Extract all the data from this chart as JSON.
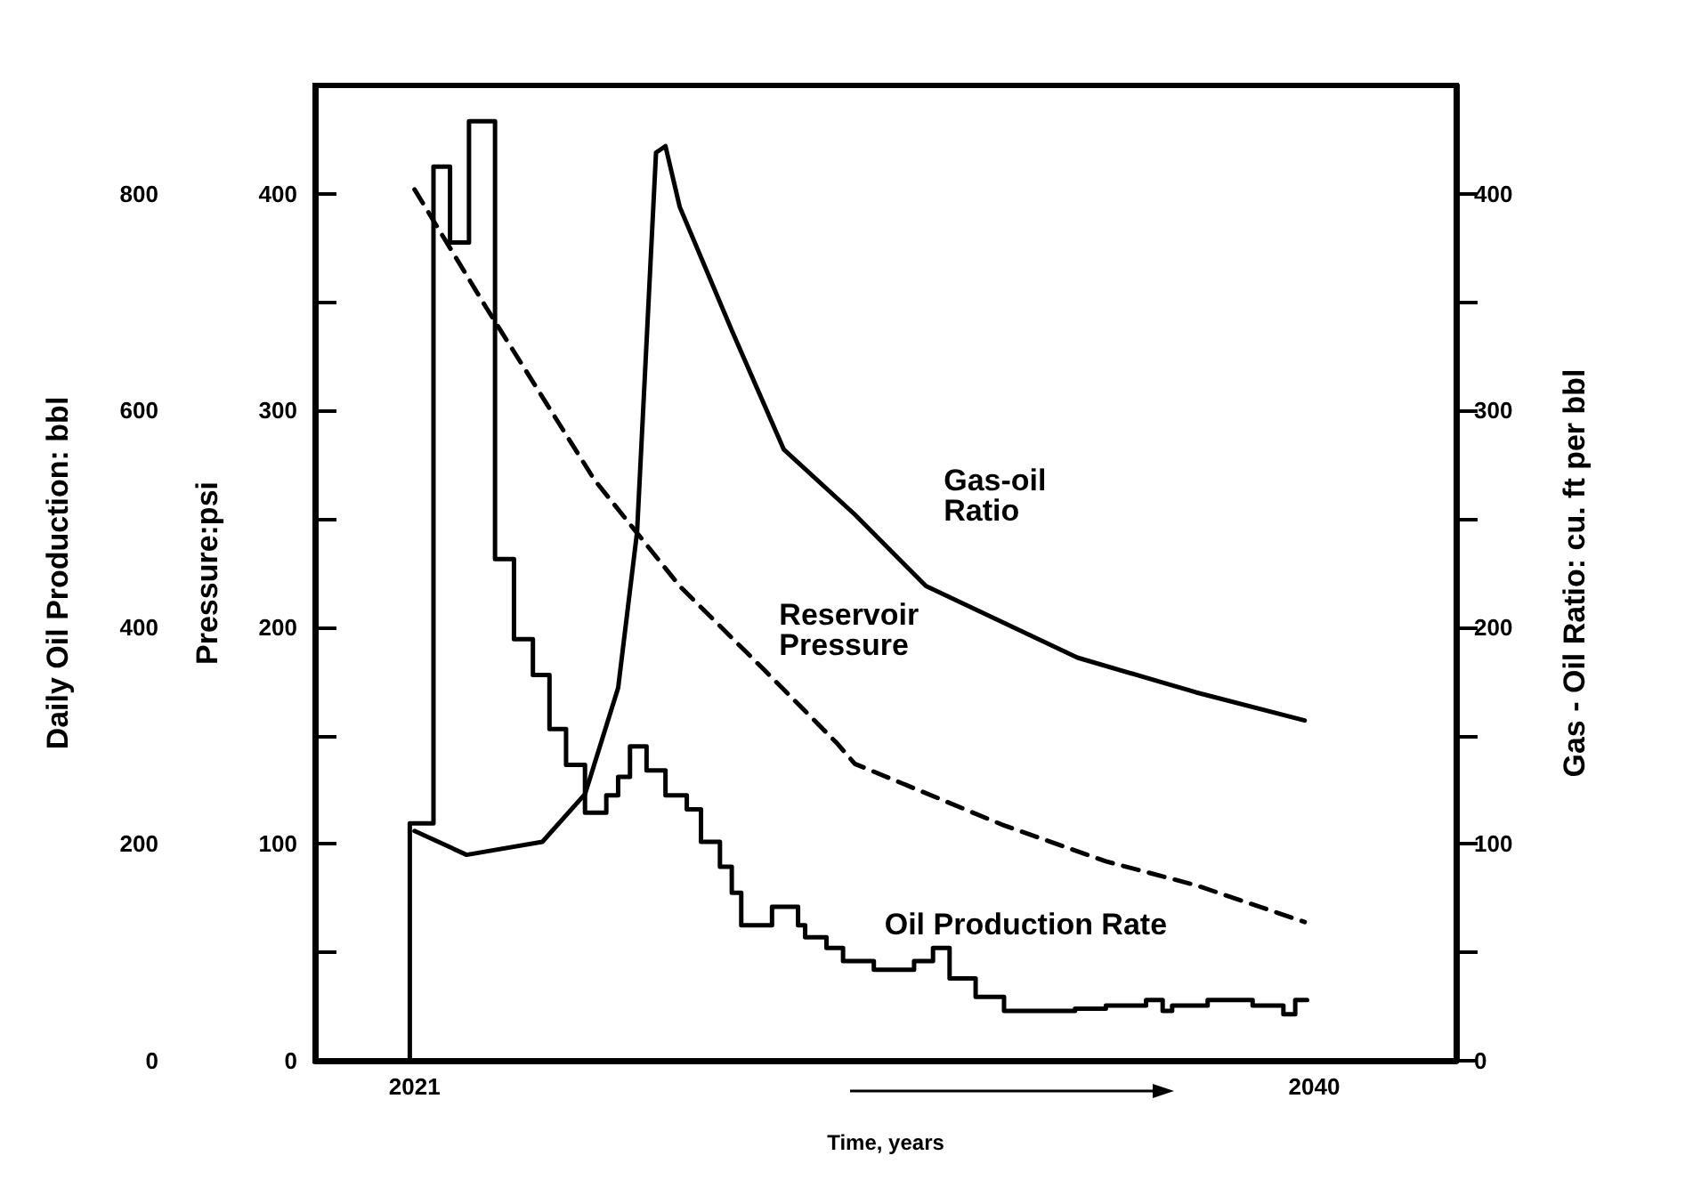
{
  "chart_data": {
    "type": "line",
    "xlabel": "Time, years",
    "ylabel": "Pressure:psi",
    "y2label": "Gas - Oil Ratio: cu. ft per bbl",
    "y3label": "Daily Oil Production: bbl",
    "xlim": [
      2018.9,
      2043
    ],
    "xticks": [
      2021,
      2040
    ],
    "ylim": [
      0,
      450
    ],
    "yticks": [
      0,
      {
        "value": 50,
        "label": null
      },
      100,
      {
        "value": 150,
        "label": null
      },
      200,
      {
        "value": 250,
        "label": null
      },
      300,
      {
        "value": 350,
        "label": null
      },
      400
    ],
    "y2lim": [
      0,
      450
    ],
    "y2ticks": [
      0,
      {
        "value": 50,
        "label": null
      },
      100,
      {
        "value": 150,
        "label": null
      },
      200,
      {
        "value": 250,
        "label": null
      },
      300,
      {
        "value": 350,
        "label": null
      },
      400
    ],
    "y3lim": [
      0,
      900
    ],
    "y3ticks": [
      0,
      200,
      400,
      600,
      800
    ],
    "grid": false,
    "legend": false,
    "marker": "none",
    "series": [
      {
        "name": "Gas-oil Ratio",
        "axis": "y2",
        "color": "#000000",
        "line_style": "solid",
        "x": [
          2021.0,
          2022.1,
          2023.7,
          2024.6,
          2025.3,
          2025.7,
          2026.1,
          2026.3,
          2026.6,
          2027.7,
          2028.8,
          2030.3,
          2031.8,
          2035.0,
          2037.5,
          2039.8
        ],
        "values": [
          106,
          95,
          101,
          123,
          172,
          244,
          419,
          422,
          394,
          337,
          282,
          252,
          219,
          186,
          170,
          157
        ]
      },
      {
        "name": "Reservoir Pressure",
        "axis": "y",
        "color": "#000000",
        "line_style": "dashed",
        "x": [
          2021.0,
          2022.5,
          2024.8,
          2026.6,
          2028.4,
          2029.9,
          2030.3,
          2033.4,
          2035.6,
          2037.5,
          2039.8
        ],
        "values": [
          402,
          348,
          268,
          219,
          180,
          147,
          137,
          109,
          92,
          81,
          64
        ]
      },
      {
        "name": "Oil Production Rate",
        "type": "step",
        "axis": "y3",
        "color": "#000000",
        "line_style": "solid",
        "x": [
          2020.9,
          2020.9,
          2021.4,
          2021.75,
          2022.15,
          2022.7,
          2023.1,
          2023.5,
          2023.85,
          2024.2,
          2024.6,
          2025.05,
          2025.3,
          2025.55,
          2025.9,
          2026.3,
          2026.75,
          2027.05,
          2027.45,
          2027.7,
          2027.9,
          2028.55,
          2029.1,
          2029.25,
          2029.7,
          2030.05,
          2030.7,
          2031.55,
          2031.95,
          2032.3,
          2032.85,
          2033.45,
          2034.95,
          2035.6,
          2036.45,
          2036.8,
          2037.0,
          2037.75,
          2038.7,
          2039.35,
          2039.6,
          2039.85
        ],
        "values": [
          0,
          219,
          825,
          755,
          867,
          463,
          389,
          356,
          306,
          273,
          229,
          245,
          262,
          290,
          268,
          245,
          232,
          202,
          179,
          155,
          125,
          142,
          125,
          114,
          104,
          92,
          84,
          92,
          104,
          76,
          59,
          46,
          48,
          51,
          56,
          46,
          51,
          56,
          51,
          43,
          56,
          56
        ]
      }
    ]
  }
}
